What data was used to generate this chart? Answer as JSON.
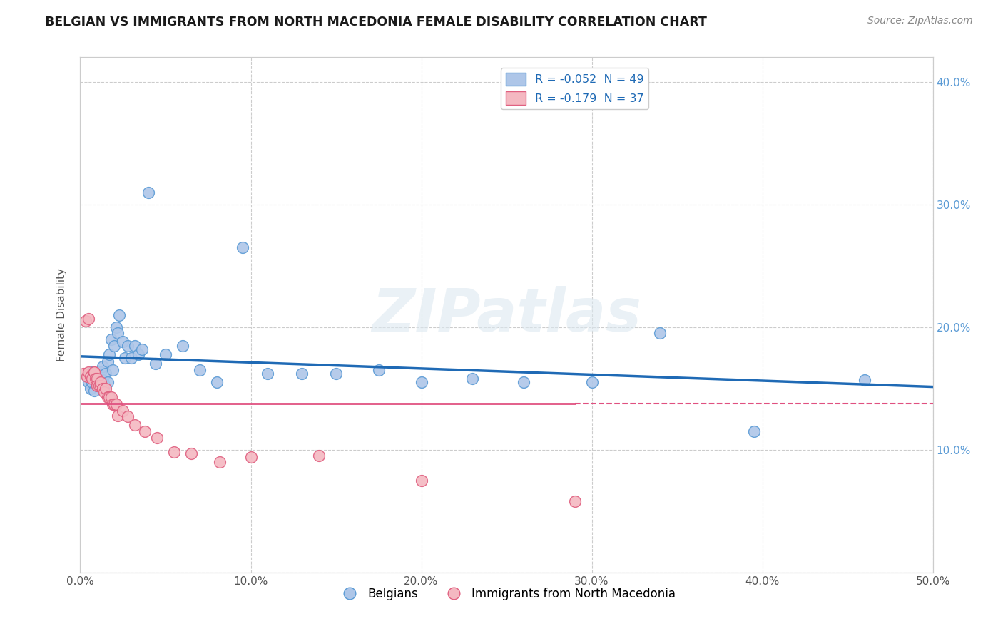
{
  "title": "BELGIAN VS IMMIGRANTS FROM NORTH MACEDONIA FEMALE DISABILITY CORRELATION CHART",
  "source": "Source: ZipAtlas.com",
  "ylabel": "Female Disability",
  "xlabel": "",
  "watermark": "ZIPatlas",
  "legend_entries": [
    {
      "label": "R = -0.052  N = 49",
      "color": "#aec6e8"
    },
    {
      "label": "R = -0.179  N = 37",
      "color": "#f4b8c1"
    }
  ],
  "legend_series": [
    "Belgians",
    "Immigrants from North Macedonia"
  ],
  "xlim": [
    0.0,
    0.5
  ],
  "ylim": [
    0.0,
    0.42
  ],
  "xticks": [
    0.0,
    0.1,
    0.2,
    0.3,
    0.4,
    0.5
  ],
  "yticks": [
    0.0,
    0.1,
    0.2,
    0.3,
    0.4
  ],
  "xticklabels": [
    "0.0%",
    "10.0%",
    "20.0%",
    "30.0%",
    "40.0%",
    "50.0%"
  ],
  "right_yticklabels": [
    "",
    "10.0%",
    "20.0%",
    "30.0%",
    "40.0%"
  ],
  "grid_color": "#cccccc",
  "background_color": "#ffffff",
  "belgian_color": "#aec6e8",
  "belgian_edge": "#5b9bd5",
  "nmacedonia_color": "#f4b8c1",
  "nmacedonia_edge": "#e06080",
  "line_blue": "#1f6ab5",
  "line_pink": "#e05080",
  "belgians_x": [
    0.004,
    0.005,
    0.006,
    0.007,
    0.007,
    0.008,
    0.009,
    0.01,
    0.01,
    0.011,
    0.012,
    0.013,
    0.013,
    0.014,
    0.015,
    0.016,
    0.016,
    0.017,
    0.018,
    0.019,
    0.02,
    0.021,
    0.022,
    0.023,
    0.025,
    0.026,
    0.028,
    0.03,
    0.032,
    0.034,
    0.036,
    0.04,
    0.044,
    0.05,
    0.06,
    0.07,
    0.08,
    0.095,
    0.11,
    0.13,
    0.15,
    0.175,
    0.2,
    0.23,
    0.26,
    0.3,
    0.34,
    0.395,
    0.46
  ],
  "belgians_y": [
    0.16,
    0.155,
    0.15,
    0.163,
    0.155,
    0.148,
    0.158,
    0.152,
    0.16,
    0.155,
    0.163,
    0.157,
    0.168,
    0.153,
    0.162,
    0.172,
    0.155,
    0.178,
    0.19,
    0.165,
    0.185,
    0.2,
    0.195,
    0.21,
    0.188,
    0.175,
    0.185,
    0.175,
    0.185,
    0.178,
    0.182,
    0.31,
    0.17,
    0.178,
    0.185,
    0.165,
    0.155,
    0.265,
    0.162,
    0.162,
    0.162,
    0.165,
    0.155,
    0.158,
    0.155,
    0.155,
    0.195,
    0.115,
    0.157
  ],
  "nmacedonia_x": [
    0.002,
    0.003,
    0.004,
    0.005,
    0.005,
    0.006,
    0.007,
    0.008,
    0.008,
    0.009,
    0.01,
    0.01,
    0.011,
    0.012,
    0.012,
    0.013,
    0.014,
    0.015,
    0.016,
    0.017,
    0.018,
    0.019,
    0.02,
    0.021,
    0.022,
    0.025,
    0.028,
    0.032,
    0.038,
    0.045,
    0.055,
    0.065,
    0.082,
    0.1,
    0.14,
    0.2,
    0.29
  ],
  "nmacedonia_y": [
    0.162,
    0.205,
    0.16,
    0.163,
    0.207,
    0.16,
    0.158,
    0.163,
    0.163,
    0.158,
    0.158,
    0.152,
    0.152,
    0.152,
    0.155,
    0.15,
    0.147,
    0.15,
    0.143,
    0.143,
    0.143,
    0.137,
    0.137,
    0.137,
    0.128,
    0.132,
    0.127,
    0.12,
    0.115,
    0.11,
    0.098,
    0.097,
    0.09,
    0.094,
    0.095,
    0.075,
    0.058
  ]
}
